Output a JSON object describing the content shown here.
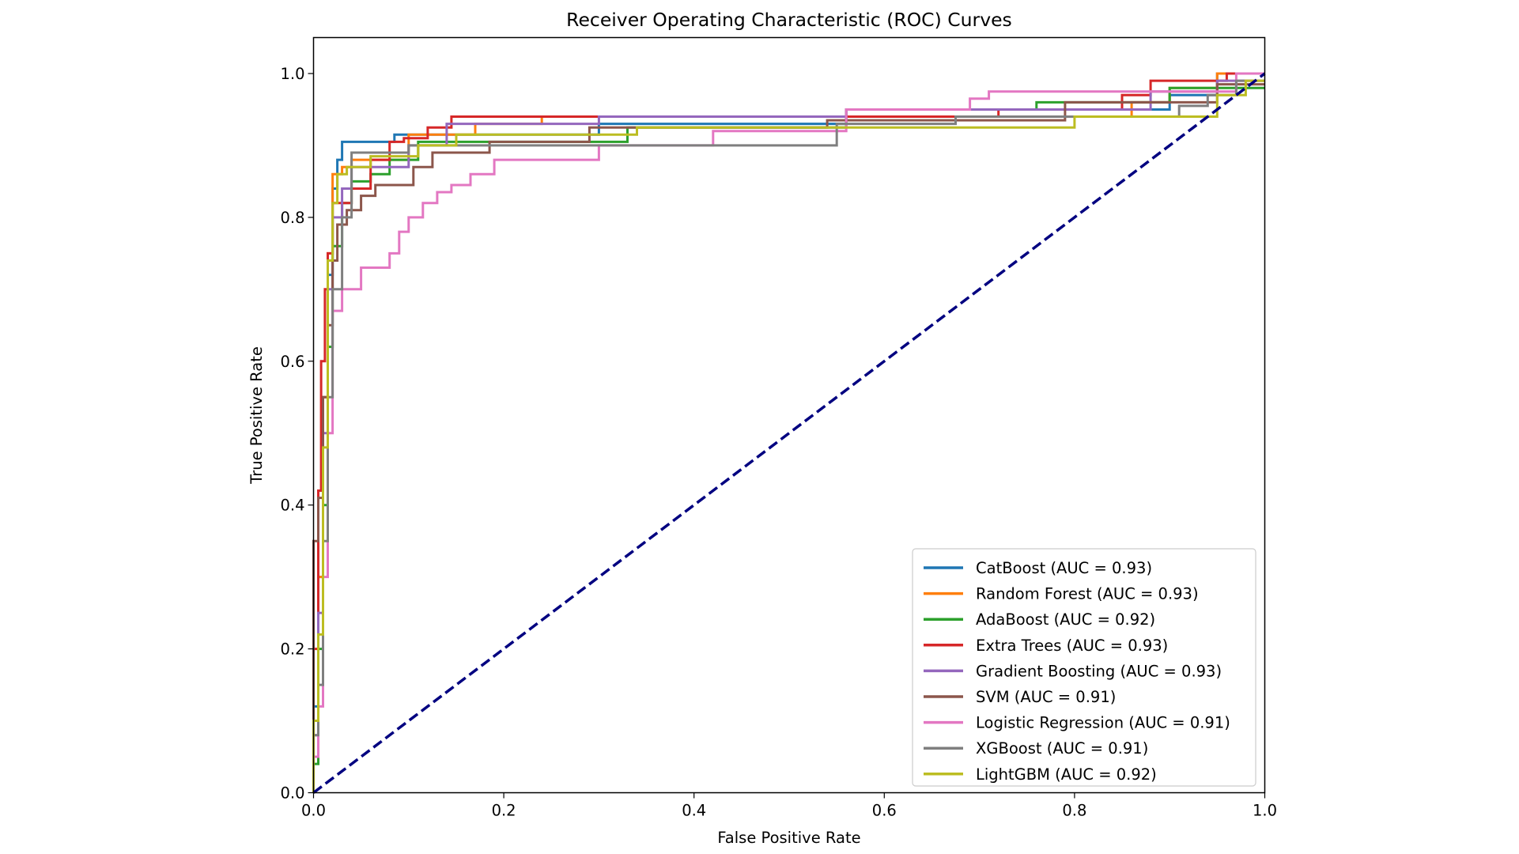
{
  "chart_data": {
    "type": "line",
    "title": "Receiver Operating Characteristic (ROC) Curves",
    "xlabel": "False Positive Rate",
    "ylabel": "True Positive Rate",
    "xlim": [
      0.0,
      1.0
    ],
    "ylim": [
      0.0,
      1.05
    ],
    "x_ticks": [
      0.0,
      0.2,
      0.4,
      0.6,
      0.8,
      1.0
    ],
    "y_ticks": [
      0.0,
      0.2,
      0.4,
      0.6,
      0.8,
      1.0
    ],
    "x_tick_labels": [
      "0.0",
      "0.2",
      "0.4",
      "0.6",
      "0.8",
      "1.0"
    ],
    "y_tick_labels": [
      "0.0",
      "0.2",
      "0.4",
      "0.6",
      "0.8",
      "1.0"
    ],
    "grid": false,
    "legend_position": "lower-right",
    "reference_line": {
      "x": [
        0,
        1
      ],
      "y": [
        0,
        1
      ],
      "color": "#000080",
      "style": "dashed"
    },
    "series": [
      {
        "name": "CatBoost (AUC = 0.93)",
        "color": "#1f77b4",
        "x": [
          0,
          0,
          0.005,
          0.005,
          0.01,
          0.01,
          0.015,
          0.015,
          0.02,
          0.02,
          0.025,
          0.025,
          0.03,
          0.03,
          0.085,
          0.085,
          0.3,
          0.3,
          0.56,
          0.56,
          0.9,
          0.9,
          0.95,
          0.95,
          1.0
        ],
        "y": [
          0,
          0.12,
          0.12,
          0.3,
          0.3,
          0.55,
          0.55,
          0.72,
          0.72,
          0.84,
          0.84,
          0.88,
          0.88,
          0.905,
          0.905,
          0.915,
          0.915,
          0.93,
          0.93,
          0.95,
          0.95,
          0.97,
          0.97,
          1.0,
          1.0
        ]
      },
      {
        "name": "Random Forest (AUC = 0.93)",
        "color": "#ff7f0e",
        "x": [
          0,
          0,
          0.005,
          0.005,
          0.01,
          0.01,
          0.015,
          0.015,
          0.02,
          0.02,
          0.03,
          0.03,
          0.04,
          0.04,
          0.1,
          0.1,
          0.17,
          0.17,
          0.24,
          0.24,
          0.86,
          0.86,
          0.9,
          0.9,
          0.95,
          0.95,
          1.0
        ],
        "y": [
          0,
          0.1,
          0.1,
          0.3,
          0.3,
          0.55,
          0.55,
          0.75,
          0.75,
          0.86,
          0.86,
          0.87,
          0.87,
          0.88,
          0.88,
          0.915,
          0.915,
          0.93,
          0.93,
          0.94,
          0.94,
          0.96,
          0.96,
          0.98,
          0.98,
          1.0,
          1.0
        ]
      },
      {
        "name": "AdaBoost (AUC = 0.92)",
        "color": "#2ca02c",
        "x": [
          0,
          0,
          0.005,
          0.005,
          0.01,
          0.01,
          0.015,
          0.015,
          0.02,
          0.02,
          0.03,
          0.03,
          0.04,
          0.04,
          0.06,
          0.06,
          0.08,
          0.08,
          0.11,
          0.11,
          0.33,
          0.33,
          0.56,
          0.56,
          0.76,
          0.76,
          0.9,
          0.9,
          1.0
        ],
        "y": [
          0,
          0.04,
          0.04,
          0.2,
          0.2,
          0.4,
          0.4,
          0.62,
          0.62,
          0.76,
          0.76,
          0.82,
          0.82,
          0.85,
          0.85,
          0.86,
          0.86,
          0.88,
          0.88,
          0.905,
          0.905,
          0.925,
          0.925,
          0.95,
          0.95,
          0.96,
          0.96,
          0.98,
          0.98
        ]
      },
      {
        "name": "Extra Trees (AUC = 0.93)",
        "color": "#d62728",
        "x": [
          0,
          0,
          0.005,
          0.005,
          0.008,
          0.008,
          0.012,
          0.012,
          0.015,
          0.015,
          0.02,
          0.02,
          0.04,
          0.04,
          0.06,
          0.06,
          0.08,
          0.08,
          0.095,
          0.095,
          0.12,
          0.12,
          0.145,
          0.145,
          0.72,
          0.72,
          0.85,
          0.85,
          0.88,
          0.88,
          0.96,
          0.96,
          1.0
        ],
        "y": [
          0,
          0.2,
          0.2,
          0.42,
          0.42,
          0.6,
          0.6,
          0.7,
          0.7,
          0.75,
          0.75,
          0.82,
          0.82,
          0.84,
          0.84,
          0.88,
          0.88,
          0.905,
          0.905,
          0.91,
          0.91,
          0.925,
          0.925,
          0.94,
          0.94,
          0.95,
          0.95,
          0.97,
          0.97,
          0.99,
          0.99,
          1.0,
          1.0
        ]
      },
      {
        "name": "Gradient Boosting (AUC = 0.93)",
        "color": "#9467bd",
        "x": [
          0,
          0,
          0.005,
          0.005,
          0.01,
          0.01,
          0.015,
          0.015,
          0.02,
          0.02,
          0.03,
          0.03,
          0.04,
          0.04,
          0.1,
          0.1,
          0.14,
          0.14,
          0.3,
          0.3,
          0.56,
          0.56,
          0.88,
          0.88,
          0.95,
          0.95,
          1.0
        ],
        "y": [
          0,
          0.08,
          0.08,
          0.25,
          0.25,
          0.5,
          0.5,
          0.7,
          0.7,
          0.8,
          0.8,
          0.84,
          0.84,
          0.87,
          0.87,
          0.9,
          0.9,
          0.93,
          0.93,
          0.94,
          0.94,
          0.95,
          0.95,
          0.975,
          0.975,
          0.99,
          0.99
        ]
      },
      {
        "name": "SVM (AUC = 0.91)",
        "color": "#8c564b",
        "x": [
          0,
          0,
          0.005,
          0.005,
          0.01,
          0.01,
          0.015,
          0.015,
          0.02,
          0.02,
          0.025,
          0.025,
          0.035,
          0.035,
          0.05,
          0.05,
          0.065,
          0.065,
          0.105,
          0.105,
          0.125,
          0.125,
          0.185,
          0.185,
          0.29,
          0.29,
          0.54,
          0.54,
          0.79,
          0.79,
          0.95,
          0.95,
          1.0
        ],
        "y": [
          0,
          0.35,
          0.35,
          0.41,
          0.41,
          0.55,
          0.55,
          0.65,
          0.65,
          0.74,
          0.74,
          0.79,
          0.79,
          0.81,
          0.81,
          0.83,
          0.83,
          0.845,
          0.845,
          0.87,
          0.87,
          0.89,
          0.89,
          0.905,
          0.905,
          0.925,
          0.925,
          0.935,
          0.935,
          0.96,
          0.96,
          0.985,
          0.985
        ]
      },
      {
        "name": "Logistic Regression (AUC = 0.91)",
        "color": "#e377c2",
        "x": [
          0,
          0,
          0.005,
          0.005,
          0.01,
          0.01,
          0.015,
          0.015,
          0.02,
          0.02,
          0.03,
          0.03,
          0.05,
          0.05,
          0.08,
          0.08,
          0.09,
          0.09,
          0.1,
          0.1,
          0.115,
          0.115,
          0.13,
          0.13,
          0.145,
          0.145,
          0.165,
          0.165,
          0.19,
          0.19,
          0.3,
          0.3,
          0.42,
          0.42,
          0.56,
          0.56,
          0.69,
          0.69,
          0.71,
          0.71,
          0.97,
          0.97,
          1.0
        ],
        "y": [
          0,
          0.05,
          0.05,
          0.12,
          0.12,
          0.3,
          0.3,
          0.5,
          0.5,
          0.67,
          0.67,
          0.7,
          0.7,
          0.73,
          0.73,
          0.75,
          0.75,
          0.78,
          0.78,
          0.8,
          0.8,
          0.82,
          0.82,
          0.835,
          0.835,
          0.845,
          0.845,
          0.86,
          0.86,
          0.88,
          0.88,
          0.9,
          0.9,
          0.92,
          0.92,
          0.95,
          0.95,
          0.965,
          0.965,
          0.975,
          0.975,
          1.0,
          1.0
        ]
      },
      {
        "name": "XGBoost (AUC = 0.91)",
        "color": "#7f7f7f",
        "x": [
          0,
          0,
          0.005,
          0.005,
          0.01,
          0.01,
          0.015,
          0.015,
          0.02,
          0.02,
          0.03,
          0.03,
          0.04,
          0.04,
          0.1,
          0.1,
          0.55,
          0.55,
          0.675,
          0.675,
          0.91,
          0.91,
          0.94,
          0.94,
          0.97,
          0.97,
          1.0
        ],
        "y": [
          0,
          0.08,
          0.08,
          0.15,
          0.15,
          0.35,
          0.35,
          0.55,
          0.55,
          0.7,
          0.7,
          0.8,
          0.8,
          0.89,
          0.89,
          0.9,
          0.9,
          0.93,
          0.93,
          0.94,
          0.94,
          0.955,
          0.955,
          0.97,
          0.97,
          0.99,
          0.99
        ]
      },
      {
        "name": "LightGBM (AUC = 0.92)",
        "color": "#bcbd22",
        "x": [
          0,
          0,
          0.005,
          0.005,
          0.01,
          0.01,
          0.015,
          0.015,
          0.02,
          0.02,
          0.025,
          0.025,
          0.035,
          0.035,
          0.06,
          0.06,
          0.11,
          0.11,
          0.15,
          0.15,
          0.34,
          0.34,
          0.8,
          0.8,
          0.95,
          0.95,
          0.98,
          0.98,
          1.0
        ],
        "y": [
          0,
          0.1,
          0.1,
          0.22,
          0.22,
          0.48,
          0.48,
          0.74,
          0.74,
          0.82,
          0.82,
          0.86,
          0.86,
          0.87,
          0.87,
          0.885,
          0.885,
          0.9,
          0.9,
          0.915,
          0.915,
          0.925,
          0.925,
          0.94,
          0.94,
          0.97,
          0.97,
          0.99,
          0.99
        ]
      }
    ]
  }
}
